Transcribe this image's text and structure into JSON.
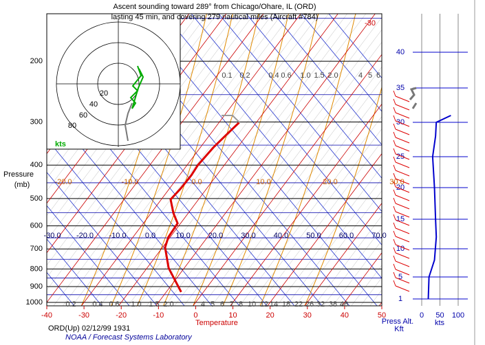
{
  "chart_data": {
    "type": "skewt",
    "title": [
      "Ascent sounding toward 289° from Chicago/Ohare, IL (ORD)",
      "lasting 45 min, and covering 279 nautical miles (Aircraft #784)"
    ],
    "y_label": [
      "Pressure",
      "(mb)"
    ],
    "x_label": "Temperature",
    "footer": "ORD(Up) 02/12/99 1931",
    "credit": "NOAA / Forecast Systems Laboratory",
    "pticks": [
      200,
      300,
      400,
      500,
      600,
      700,
      800,
      900,
      1000
    ],
    "xlim": [
      -40,
      50
    ],
    "xticks": [
      -40,
      -30,
      -20,
      -10,
      0,
      10,
      20,
      30,
      40,
      50
    ],
    "isotherm_labels_500": [
      "-20.0",
      "-10.0",
      "0.0",
      "10.0",
      "20.0",
      "30.0"
    ],
    "adiabat_labels_700": [
      "-30.0",
      "-20.0",
      "-10.0",
      "0.0",
      "10.0",
      "20.0",
      "30.0",
      "40.0",
      "50.0",
      "60.0",
      "70.0"
    ],
    "top_label": "-30",
    "mixing_top": [
      "0.1",
      "0.2",
      "0.4",
      "0.6",
      "1.0",
      "1.5",
      "2.0",
      "4",
      "5",
      "6"
    ],
    "mixing_bottom": [
      "0.2",
      "0.4",
      "0.6",
      "1.0",
      "1.5",
      "2.0",
      "4",
      "5",
      "6",
      "7",
      "8",
      "10",
      "12",
      "14",
      "18",
      "22",
      "26",
      "32",
      "38",
      "46"
    ],
    "temperature_profile": {
      "pressure": [
        933,
        795,
        693,
        647,
        590,
        551,
        503,
        469,
        428,
        400,
        356,
        325,
        301
      ],
      "temperature": [
        -6.0,
        -14.2,
        -19.3,
        -20.5,
        -20.8,
        -24.0,
        -27.5,
        -27.0,
        -26.8,
        -27.1,
        -26.5,
        -25.5,
        -24.6
      ],
      "color": "#dd0000"
    },
    "hodograph": {
      "ring_labels": [
        "20",
        "40",
        "60",
        "80"
      ],
      "units": "kts"
    },
    "wind_panel": {
      "altticks": [
        1,
        5,
        10,
        15,
        20,
        25,
        30,
        35,
        40
      ],
      "speedticks": [
        0,
        50,
        100
      ],
      "alt_label": [
        "Press Alt.",
        "Kft"
      ],
      "speed_label": "kts",
      "altitude": [
        1,
        5,
        8,
        12,
        15,
        20,
        25,
        28,
        30,
        31
      ],
      "speed": [
        18,
        20,
        35,
        40,
        38,
        35,
        30,
        38,
        40,
        80
      ],
      "color": "#0000cc"
    }
  }
}
